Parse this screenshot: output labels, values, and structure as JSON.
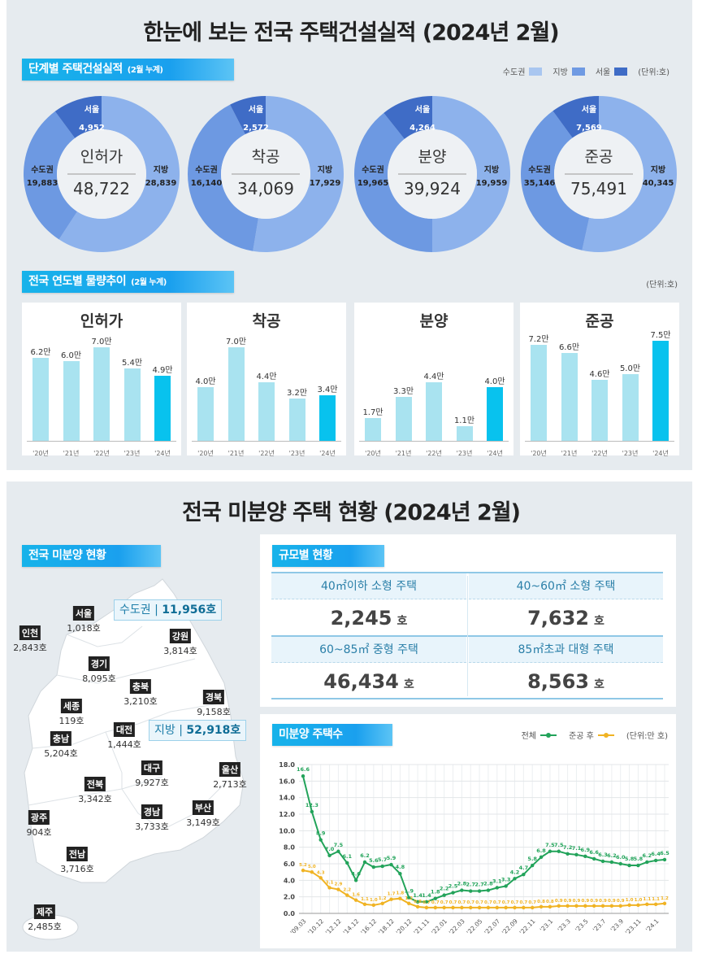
{
  "top": {
    "title": "한눈에 보는 전국 주택건설실적 (2024년 2월)",
    "section_stage": {
      "label": "단계별 주택건설실적",
      "sub": "(2월 누계)"
    },
    "legend": [
      {
        "label": "수도권",
        "color": "#a9c6f0"
      },
      {
        "label": "지방",
        "color": "#6f9ae3"
      },
      {
        "label": "서울",
        "color": "#3f6cc6"
      }
    ],
    "unit": "(단위:호)",
    "section_trend": {
      "label": "전국 연도별 물량추이",
      "sub": "(2월 누계)"
    },
    "trend_unit": "(단위:호)"
  },
  "bottom": {
    "title": "전국 미분양 주택 현황 (2024년 2월)",
    "map_section": "전국 미분양 현황",
    "capital_total": {
      "label": "수도권",
      "value": "11,956호"
    },
    "local_total": {
      "label": "지방",
      "value": "52,918호"
    },
    "regions": [
      {
        "name": "서울",
        "value": "1,018호"
      },
      {
        "name": "인천",
        "value": "2,843호"
      },
      {
        "name": "경기",
        "value": "8,095호"
      },
      {
        "name": "강원",
        "value": "3,814호"
      },
      {
        "name": "충북",
        "value": "3,210호"
      },
      {
        "name": "경북",
        "value": "9,158호"
      },
      {
        "name": "세종",
        "value": "119호"
      },
      {
        "name": "대전",
        "value": "1,444호"
      },
      {
        "name": "충남",
        "value": "5,204호"
      },
      {
        "name": "대구",
        "value": "9,927호"
      },
      {
        "name": "울산",
        "value": "2,713호"
      },
      {
        "name": "전북",
        "value": "3,342호"
      },
      {
        "name": "광주",
        "value": "904호"
      },
      {
        "name": "경남",
        "value": "3,733호"
      },
      {
        "name": "부산",
        "value": "3,149호"
      },
      {
        "name": "전남",
        "value": "3,716호"
      },
      {
        "name": "제주",
        "value": "2,485호"
      }
    ],
    "size_section": "규모별 현황",
    "size_table": [
      {
        "label": "40㎡이하 소형 주택",
        "value": "2,245",
        "unit": "호"
      },
      {
        "label": "40~60㎡ 소형 주택",
        "value": "7,632",
        "unit": "호"
      },
      {
        "label": "60~85㎡ 중형 주택",
        "value": "46,434",
        "unit": "호"
      },
      {
        "label": "85㎡초과 대형 주택",
        "value": "8,563",
        "unit": "호"
      }
    ]
  },
  "chart_data": [
    {
      "type": "pie",
      "variant": "donut",
      "title": "인허가",
      "total": "48,722",
      "slices": [
        {
          "name": "지방",
          "value": 28839,
          "label": "28,839"
        },
        {
          "name": "수도권",
          "value": 19883,
          "label": "19,883"
        },
        {
          "name": "서울",
          "value": 4952,
          "label": "4,952"
        }
      ]
    },
    {
      "type": "pie",
      "variant": "donut",
      "title": "착공",
      "total": "34,069",
      "slices": [
        {
          "name": "지방",
          "value": 17929,
          "label": "17,929"
        },
        {
          "name": "수도권",
          "value": 16140,
          "label": "16,140"
        },
        {
          "name": "서울",
          "value": 2572,
          "label": "2,572"
        }
      ]
    },
    {
      "type": "pie",
      "variant": "donut",
      "title": "분양",
      "total": "39,924",
      "slices": [
        {
          "name": "지방",
          "value": 19959,
          "label": "19,959"
        },
        {
          "name": "수도권",
          "value": 19965,
          "label": "19,965"
        },
        {
          "name": "서울",
          "value": 4264,
          "label": "4,264"
        }
      ]
    },
    {
      "type": "pie",
      "variant": "donut",
      "title": "준공",
      "total": "75,491",
      "slices": [
        {
          "name": "지방",
          "value": 40345,
          "label": "40,345"
        },
        {
          "name": "수도권",
          "value": 35146,
          "label": "35,146"
        },
        {
          "name": "서울",
          "value": 7569,
          "label": "7,569"
        }
      ]
    },
    {
      "type": "bar",
      "title": "인허가",
      "categories": [
        "'20년",
        "'21년",
        "'22년",
        "'23년",
        "'24년"
      ],
      "values": [
        6.2,
        6.0,
        7.0,
        5.4,
        4.9
      ],
      "labels": [
        "6.2만",
        "6.0만",
        "7.0만",
        "5.4만",
        "4.9만"
      ],
      "highlight_color": "#08c2ee",
      "color": "#a9e3f0"
    },
    {
      "type": "bar",
      "title": "착공",
      "categories": [
        "'20년",
        "'21년",
        "'22년",
        "'23년",
        "'24년"
      ],
      "values": [
        4.0,
        7.0,
        4.4,
        3.2,
        3.4
      ],
      "labels": [
        "4.0만",
        "7.0만",
        "4.4만",
        "3.2만",
        "3.4만"
      ],
      "highlight_color": "#08c2ee",
      "color": "#a9e3f0"
    },
    {
      "type": "bar",
      "title": "분양",
      "categories": [
        "'20년",
        "'21년",
        "'22년",
        "'23년",
        "'24년"
      ],
      "values": [
        1.7,
        3.3,
        4.4,
        1.1,
        4.0
      ],
      "labels": [
        "1.7만",
        "3.3만",
        "4.4만",
        "1.1만",
        "4.0만"
      ],
      "highlight_color": "#08c2ee",
      "color": "#a9e3f0"
    },
    {
      "type": "bar",
      "title": "준공",
      "categories": [
        "'20년",
        "'21년",
        "'22년",
        "'23년",
        "'24년"
      ],
      "values": [
        7.2,
        6.6,
        4.6,
        5.0,
        7.5
      ],
      "labels": [
        "7.2만",
        "6.6만",
        "4.6만",
        "5.0만",
        "7.5만"
      ],
      "highlight_color": "#08c2ee",
      "color": "#a9e3f0"
    },
    {
      "type": "line",
      "title": "미분양 주택수",
      "unit": "(단위:만 호)",
      "ylim": [
        0,
        18
      ],
      "yticks": [
        "0.0",
        "2.0",
        "4.0",
        "6.0",
        "8.0",
        "10.0",
        "12.0",
        "14.0",
        "16.0",
        "18.0"
      ],
      "x_tick_labels": [
        "'09.03",
        "'10.12",
        "'12.12",
        "'14.12",
        "'16.12",
        "'18.12",
        "'20.12",
        "'21.11",
        "'22.01",
        "'22.03",
        "'22.05",
        "'22.07",
        "'22.09",
        "'22.11",
        "'23.1",
        "'23.3",
        "'23.5",
        "'23.7",
        "'23.9",
        "'23.11",
        "'24.1"
      ],
      "grid": true,
      "legend_position": "top-right",
      "series": [
        {
          "name": "전체",
          "color": "#22a35a",
          "values": [
            16.6,
            12.3,
            8.9,
            7.0,
            7.5,
            6.1,
            4.0,
            6.2,
            5.6,
            5.7,
            5.9,
            4.8,
            1.9,
            1.4,
            1.4,
            1.8,
            2.2,
            2.5,
            2.8,
            2.7,
            2.7,
            2.8,
            3.1,
            3.3,
            4.2,
            4.7,
            5.8,
            6.8,
            7.5,
            7.5,
            7.2,
            7.1,
            6.9,
            6.6,
            6.3,
            6.2,
            6.0,
            5.8,
            5.8,
            6.2,
            6.4,
            6.5
          ]
        },
        {
          "name": "준공 후",
          "color": "#f0b323",
          "values": [
            5.2,
            5.0,
            4.3,
            3.1,
            2.9,
            2.2,
            1.6,
            1.1,
            1.0,
            1.2,
            1.7,
            1.8,
            1.2,
            0.8,
            0.7,
            0.7,
            0.7,
            0.7,
            0.7,
            0.7,
            0.7,
            0.7,
            0.7,
            0.7,
            0.7,
            0.7,
            0.7,
            0.8,
            0.8,
            0.9,
            0.9,
            0.9,
            0.9,
            0.9,
            0.9,
            0.9,
            0.9,
            1.0,
            1.0,
            1.1,
            1.1,
            1.2
          ]
        }
      ]
    }
  ]
}
